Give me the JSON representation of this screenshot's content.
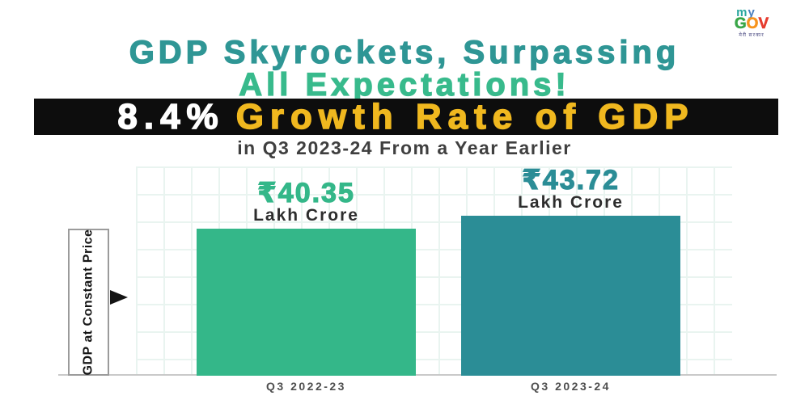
{
  "logo": {
    "line1_a": "m",
    "line1_b": "y",
    "line2_a": "G",
    "line2_b": "O",
    "line2_c": "V",
    "tagline": "मेरी सरकार"
  },
  "title": {
    "line1": "GDP Skyrockets, Surpassing",
    "line2": "All Expectations!"
  },
  "banner": {
    "rate": "8.4%",
    "label": "Growth Rate of GDP"
  },
  "subtitle": "in Q3 2023-24 From a Year Earlier",
  "chart": {
    "y_axis_label": "GDP at Constant Price",
    "bars": [
      {
        "value_text": "₹40.35",
        "unit": "Lakh Crore",
        "category": "Q3 2022-23",
        "color": "#34b789"
      },
      {
        "value_text": "₹43.72",
        "unit": "Lakh Crore",
        "category": "Q3 2023-24",
        "color": "#2b8d96"
      }
    ]
  },
  "chart_data": {
    "type": "bar",
    "categories": [
      "Q3 2022-23",
      "Q3 2023-24"
    ],
    "values": [
      40.35,
      43.72
    ],
    "unit": "₹ Lakh Crore",
    "title": "GDP Skyrockets, Surpassing All Expectations!",
    "subtitle": "8.4% Growth Rate of GDP in Q3 2023-24 From a Year Earlier",
    "xlabel": "",
    "ylabel": "GDP at Constant Price",
    "growth_rate_percent": 8.4,
    "ylim": [
      0,
      45
    ],
    "grid": true,
    "legend": false,
    "bar_colors": [
      "#34b789",
      "#2b8d96"
    ]
  },
  "colors": {
    "title_teal": "#2f9695",
    "title_green": "#38ba8c",
    "banner_bg": "#0d0d0d",
    "banner_rate_text": "#ffffff",
    "banner_label_text": "#f0b81f",
    "bar_green": "#34b789",
    "bar_teal": "#2b8d96",
    "grid_line": "#e9f4f0",
    "baseline": "#c9c9c9"
  }
}
